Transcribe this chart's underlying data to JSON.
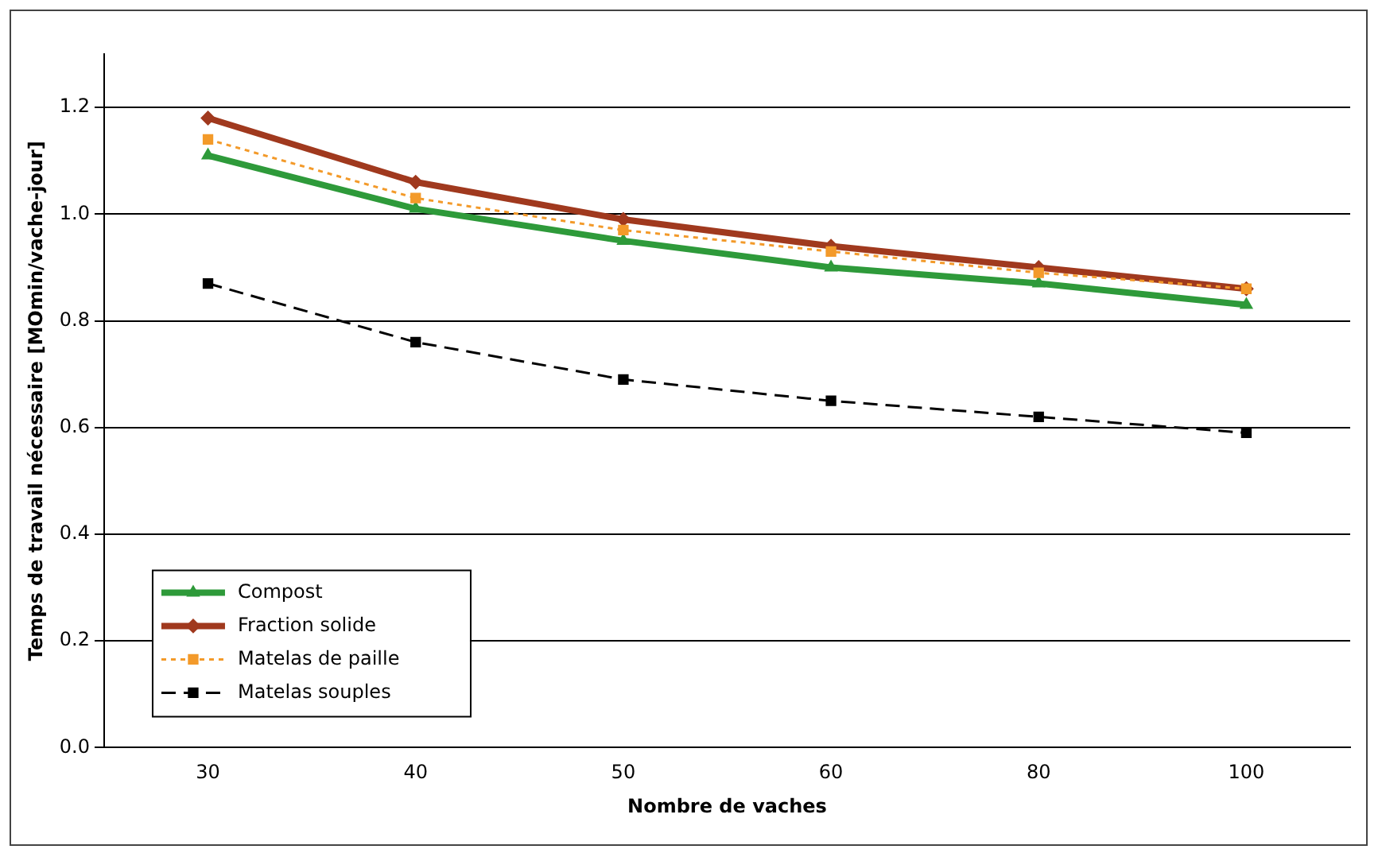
{
  "chart_data": {
    "type": "line",
    "xlabel": "Nombre de vaches",
    "ylabel": "Temps de travail nécessaire [MOmin/vache-jour]",
    "categories": [
      "30",
      "40",
      "50",
      "60",
      "80",
      "100"
    ],
    "series": [
      {
        "name": "Compost",
        "color": "#2e9a3a",
        "values": [
          1.11,
          1.01,
          0.95,
          0.9,
          0.87,
          0.83
        ],
        "marker": "triangle",
        "line_style": "solid"
      },
      {
        "name": "Fraction solide",
        "color": "#a0391e",
        "values": [
          1.18,
          1.06,
          0.99,
          0.94,
          0.9,
          0.86
        ],
        "marker": "diamond",
        "line_style": "solid"
      },
      {
        "name": "Matelas de paille",
        "color": "#f39a2a",
        "values": [
          1.14,
          1.03,
          0.97,
          0.93,
          0.89,
          0.86
        ],
        "marker": "square",
        "line_style": "dotted"
      },
      {
        "name": "Matelas souples",
        "color": "#000000",
        "values": [
          0.87,
          0.76,
          0.69,
          0.65,
          0.62,
          0.59
        ],
        "marker": "square",
        "line_style": "dashed"
      }
    ],
    "ylim": [
      0,
      1.3
    ],
    "yticks": [
      {
        "value": 0,
        "label": "0.0"
      },
      0.2,
      0.4,
      0.6,
      0.8,
      {
        "value": 1,
        "label": "1.0"
      },
      1.2
    ],
    "grid": "y",
    "legend": "bottom left"
  }
}
